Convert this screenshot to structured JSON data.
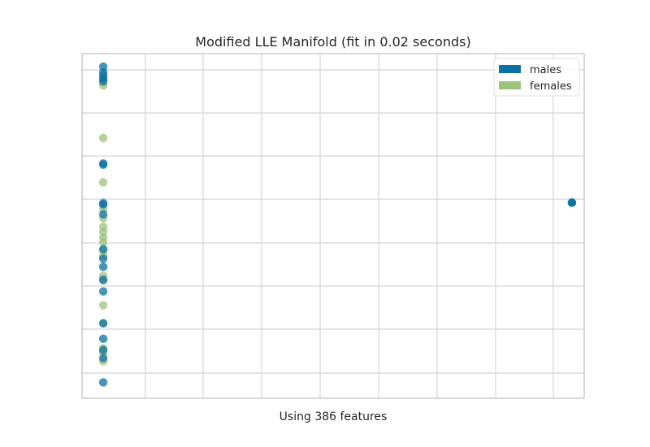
{
  "chart_data": {
    "type": "scatter",
    "title": "Modified LLE Manifold (fit in 0.02 seconds)",
    "xlabel": "Using 386 features",
    "ylabel": "",
    "xlim": [
      0,
      9
    ],
    "ylim": [
      0,
      8
    ],
    "grid": true,
    "tick_labels_visible": false,
    "legend_position": "top-right",
    "series": [
      {
        "name": "females",
        "color": "#9dc27a",
        "points": [
          {
            "x": 0.38,
            "y": 7.42
          },
          {
            "x": 0.38,
            "y": 7.34
          },
          {
            "x": 0.38,
            "y": 7.26
          },
          {
            "x": 0.38,
            "y": 6.04
          },
          {
            "x": 0.38,
            "y": 5.01
          },
          {
            "x": 0.38,
            "y": 4.39
          },
          {
            "x": 0.38,
            "y": 4.18
          },
          {
            "x": 0.38,
            "y": 3.98
          },
          {
            "x": 0.38,
            "y": 3.86
          },
          {
            "x": 0.38,
            "y": 3.73
          },
          {
            "x": 0.38,
            "y": 3.62
          },
          {
            "x": 0.38,
            "y": 3.44
          },
          {
            "x": 0.38,
            "y": 3.31
          },
          {
            "x": 0.38,
            "y": 2.84
          },
          {
            "x": 0.38,
            "y": 2.73
          },
          {
            "x": 0.38,
            "y": 2.16
          },
          {
            "x": 0.38,
            "y": 1.74
          },
          {
            "x": 0.38,
            "y": 1.16
          },
          {
            "x": 0.38,
            "y": 1.06
          },
          {
            "x": 0.38,
            "y": 0.86
          }
        ]
      },
      {
        "name": "males",
        "color": "#0c72a3",
        "points": [
          {
            "x": 0.38,
            "y": 7.7
          },
          {
            "x": 0.38,
            "y": 7.57
          },
          {
            "x": 0.38,
            "y": 7.5
          },
          {
            "x": 0.38,
            "y": 7.43
          },
          {
            "x": 0.38,
            "y": 7.36
          },
          {
            "x": 0.38,
            "y": 5.45
          },
          {
            "x": 0.38,
            "y": 5.42
          },
          {
            "x": 0.38,
            "y": 4.53
          },
          {
            "x": 0.38,
            "y": 4.5
          },
          {
            "x": 0.38,
            "y": 4.27
          },
          {
            "x": 0.38,
            "y": 3.46
          },
          {
            "x": 0.38,
            "y": 3.24
          },
          {
            "x": 0.38,
            "y": 3.05
          },
          {
            "x": 0.38,
            "y": 2.75
          },
          {
            "x": 0.38,
            "y": 2.48
          },
          {
            "x": 0.38,
            "y": 1.74
          },
          {
            "x": 0.38,
            "y": 1.38
          },
          {
            "x": 0.38,
            "y": 1.12
          },
          {
            "x": 0.38,
            "y": 0.93
          },
          {
            "x": 0.38,
            "y": 0.37
          },
          {
            "x": 8.78,
            "y": 4.54
          },
          {
            "x": 8.78,
            "y": 4.54
          },
          {
            "x": 8.78,
            "y": 4.54
          }
        ]
      }
    ],
    "legend_order": [
      "males",
      "females"
    ]
  }
}
